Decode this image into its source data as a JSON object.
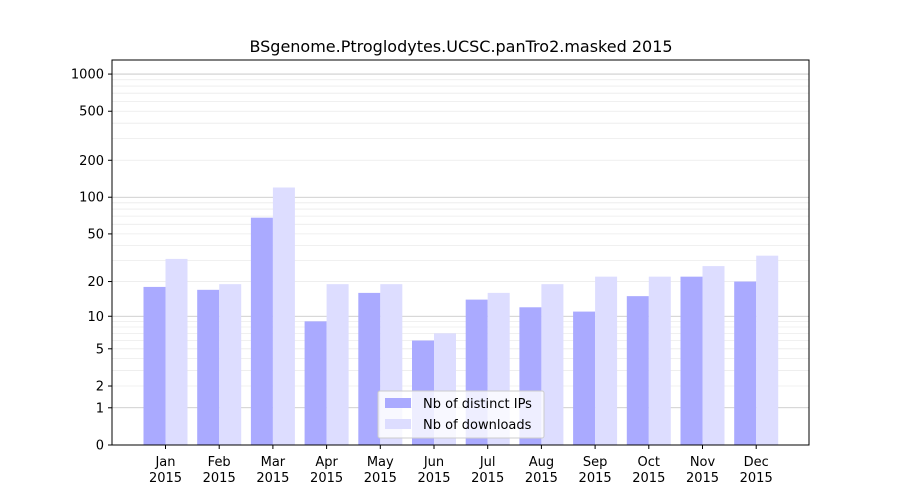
{
  "chart_data": {
    "type": "bar",
    "title": "BSgenome.Ptroglodytes.UCSC.panTro2.masked 2015",
    "xlabel": "",
    "ylabel": "",
    "yscale": "log (symlog)",
    "yticks": [
      0,
      1,
      2,
      5,
      10,
      20,
      50,
      100,
      200,
      500,
      1000
    ],
    "ytick_labels": [
      "0",
      "1",
      "2",
      "5",
      "10",
      "20",
      "50",
      "100",
      "200",
      "500",
      "1000"
    ],
    "ylim": [
      0,
      1300
    ],
    "categories": [
      [
        "Jan",
        "2015"
      ],
      [
        "Feb",
        "2015"
      ],
      [
        "Mar",
        "2015"
      ],
      [
        "Apr",
        "2015"
      ],
      [
        "May",
        "2015"
      ],
      [
        "Jun",
        "2015"
      ],
      [
        "Jul",
        "2015"
      ],
      [
        "Aug",
        "2015"
      ],
      [
        "Sep",
        "2015"
      ],
      [
        "Oct",
        "2015"
      ],
      [
        "Nov",
        "2015"
      ],
      [
        "Dec",
        "2015"
      ]
    ],
    "series": [
      {
        "name": "Nb of distinct IPs",
        "color": "#aaaaff",
        "values": [
          18,
          17,
          68,
          9,
          16,
          6,
          14,
          12,
          11,
          15,
          22,
          20
        ]
      },
      {
        "name": "Nb of downloads",
        "color": "#ddddff",
        "values": [
          31,
          19,
          120,
          19,
          19,
          7,
          16,
          19,
          22,
          22,
          27,
          33
        ]
      }
    ],
    "legend_position": "bottom-center",
    "grid": true
  }
}
